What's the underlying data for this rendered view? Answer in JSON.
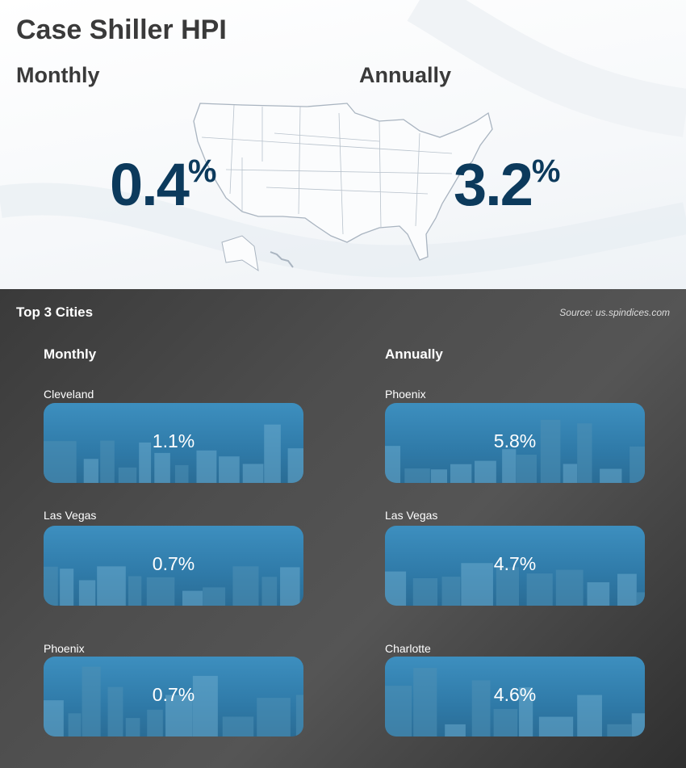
{
  "header": {
    "title": "Case Shiller HPI"
  },
  "national": {
    "monthly": {
      "label": "Monthly",
      "value": "0.4",
      "unit": "%"
    },
    "annually": {
      "label": "Annually",
      "value": "3.2",
      "unit": "%"
    }
  },
  "cities": {
    "title": "Top 3 Cities",
    "source": "Source: us.spindices.com",
    "monthly": {
      "label": "Monthly",
      "items": [
        {
          "name": "Cleveland",
          "change": "1.1%"
        },
        {
          "name": "Las Vegas",
          "change": "0.7%"
        },
        {
          "name": "Phoenix",
          "change": "0.7%"
        }
      ]
    },
    "annually": {
      "label": "Annually",
      "items": [
        {
          "name": "Phoenix",
          "change": "5.8%"
        },
        {
          "name": "Las Vegas",
          "change": "4.7%"
        },
        {
          "name": "Charlotte",
          "change": "4.6%"
        }
      ]
    }
  }
}
